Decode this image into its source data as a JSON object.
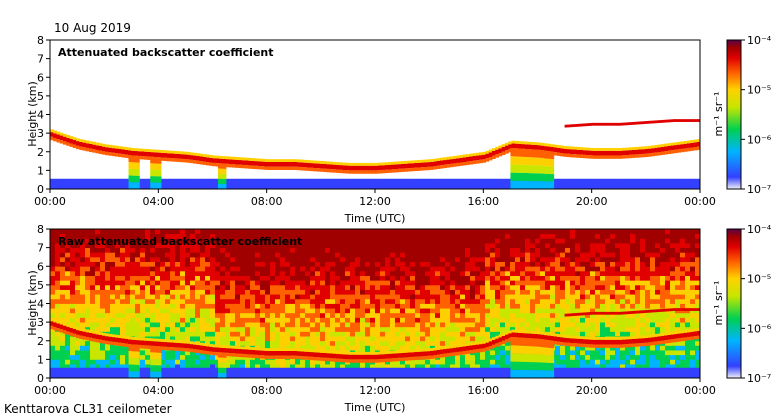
{
  "date": "10 Aug 2019",
  "footer": "Kenttarova CL31 ceilometer",
  "colors": {
    "background": "#ffffff",
    "axis": "#000000",
    "colormap": [
      "#f2f2fa",
      "#3340ff",
      "#00b4ff",
      "#00d050",
      "#c8e600",
      "#ffd000",
      "#ff6000",
      "#e00000",
      "#a00000",
      "#5a0048"
    ]
  },
  "chart_data": [
    {
      "type": "heatmap",
      "title": "Attenuated backscatter coefficient",
      "xlabel": "Time (UTC)",
      "ylabel": "Height (km)",
      "xticks": [
        "00:00",
        "04:00",
        "08:00",
        "12:00",
        "16:00",
        "20:00",
        "00:00"
      ],
      "xlim": [
        0,
        24
      ],
      "yticks": [
        "0",
        "1",
        "2",
        "3",
        "4",
        "5",
        "6",
        "7",
        "8"
      ],
      "ylim": [
        0,
        8
      ],
      "colorbar": {
        "label": "m⁻¹ sr⁻¹",
        "ticks": [
          "10⁻⁷",
          "10⁻⁶",
          "10⁻⁵",
          "10⁻⁴"
        ],
        "log_min": -7,
        "log_max": -4,
        "scale": "log"
      },
      "cloud_base_km": [
        [
          0,
          2.8
        ],
        [
          1,
          2.3
        ],
        [
          2,
          2.0
        ],
        [
          3,
          1.8
        ],
        [
          4,
          1.7
        ],
        [
          5,
          1.6
        ],
        [
          6,
          1.4
        ],
        [
          7,
          1.3
        ],
        [
          8,
          1.2
        ],
        [
          9,
          1.2
        ],
        [
          10,
          1.1
        ],
        [
          11,
          1.0
        ],
        [
          12,
          1.0
        ],
        [
          13,
          1.1
        ],
        [
          14,
          1.2
        ],
        [
          15,
          1.4
        ],
        [
          16,
          1.6
        ],
        [
          17,
          2.2
        ],
        [
          18,
          2.1
        ],
        [
          19,
          1.9
        ],
        [
          20,
          1.8
        ],
        [
          21,
          1.8
        ],
        [
          22,
          1.9
        ],
        [
          23,
          2.1
        ],
        [
          24,
          2.3
        ]
      ],
      "upper_layer_km": [
        [
          19,
          3.3
        ],
        [
          20,
          3.4
        ],
        [
          21,
          3.4
        ],
        [
          22,
          3.5
        ],
        [
          23,
          3.6
        ],
        [
          24,
          3.6
        ]
      ],
      "noise_background": false
    },
    {
      "type": "heatmap",
      "title": "Raw attenuated backscatter coefficient",
      "xlabel": "Time (UTC)",
      "ylabel": "Height (km)",
      "xticks": [
        "00:00",
        "04:00",
        "08:00",
        "12:00",
        "16:00",
        "20:00",
        "00:00"
      ],
      "xlim": [
        0,
        24
      ],
      "yticks": [
        "0",
        "1",
        "2",
        "3",
        "4",
        "5",
        "6",
        "7",
        "8"
      ],
      "ylim": [
        0,
        8
      ],
      "colorbar": {
        "label": "m⁻¹ sr⁻¹",
        "ticks": [
          "10⁻⁷",
          "10⁻⁶",
          "10⁻⁵",
          "10⁻⁴"
        ],
        "log_min": -7,
        "log_max": -4,
        "scale": "log"
      },
      "cloud_base_km": [
        [
          0,
          2.8
        ],
        [
          1,
          2.3
        ],
        [
          2,
          2.0
        ],
        [
          3,
          1.8
        ],
        [
          4,
          1.7
        ],
        [
          5,
          1.6
        ],
        [
          6,
          1.4
        ],
        [
          7,
          1.3
        ],
        [
          8,
          1.2
        ],
        [
          9,
          1.2
        ],
        [
          10,
          1.1
        ],
        [
          11,
          1.0
        ],
        [
          12,
          1.0
        ],
        [
          13,
          1.1
        ],
        [
          14,
          1.2
        ],
        [
          15,
          1.4
        ],
        [
          16,
          1.6
        ],
        [
          17,
          2.2
        ],
        [
          18,
          2.1
        ],
        [
          19,
          1.9
        ],
        [
          20,
          1.8
        ],
        [
          21,
          1.8
        ],
        [
          22,
          1.9
        ],
        [
          23,
          2.1
        ],
        [
          24,
          2.3
        ]
      ],
      "upper_layer_km": [
        [
          19,
          3.3
        ],
        [
          20,
          3.4
        ],
        [
          21,
          3.4
        ],
        [
          22,
          3.5
        ],
        [
          23,
          3.6
        ],
        [
          24,
          3.6
        ]
      ],
      "noise_background": true
    }
  ]
}
